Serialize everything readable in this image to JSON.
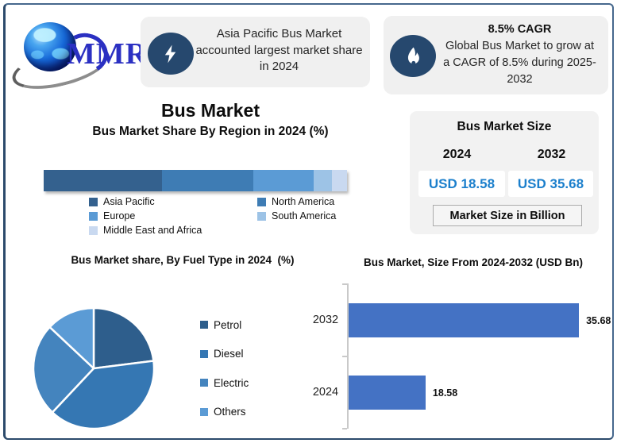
{
  "logo": {
    "text": "MMR"
  },
  "callouts": {
    "left": {
      "icon": "lightning-bolt",
      "lines": [
        "Asia Pacific Bus Market",
        "accounted largest market share",
        "in 2024"
      ]
    },
    "right": {
      "icon": "flame",
      "headline": "8.5% CAGR",
      "lines": [
        "Global Bus Market to grow at",
        "a CAGR of 8.5% during 2025-",
        "2032"
      ]
    }
  },
  "header": {
    "title": "Bus Market"
  },
  "market_size_panel": {
    "title": "Bus Market Size",
    "years": [
      "2024",
      "2032"
    ],
    "values": [
      "USD 18.58",
      "USD 35.68"
    ],
    "note": "Market Size in Billion",
    "value_color": "#1b7fcc"
  },
  "chart_data": [
    {
      "type": "bar",
      "variant": "stacked-horizontal",
      "title": "Bus Market Share By Region in 2024 (%)",
      "categories": [
        "Asia Pacific",
        "North America",
        "Europe",
        "South America",
        "Middle East and Africa"
      ],
      "values": [
        39,
        30,
        20,
        6,
        5
      ],
      "colors": [
        "#34618E",
        "#3E7CB4",
        "#5B9BD5",
        "#9DC3E6",
        "#C9D9F0"
      ],
      "unit": "%",
      "legend_position": "bottom",
      "note": "segment values estimated from bar proportions; no data labels shown"
    },
    {
      "type": "pie",
      "title": "Bus Market share, By Fuel Type in 2024  (%)",
      "categories": [
        "Petrol",
        "Diesel",
        "Electric",
        "Others"
      ],
      "values": [
        23,
        39,
        25,
        13
      ],
      "colors": [
        "#2E5E8C",
        "#3577B3",
        "#4484BE",
        "#5B9BD5"
      ],
      "legend_position": "right",
      "note": "slice values estimated from angles; no data labels shown"
    },
    {
      "type": "bar",
      "variant": "horizontal",
      "title": "Bus Market, Size From 2024-2032 (USD Bn)",
      "categories": [
        "2032",
        "2024"
      ],
      "values": [
        35.68,
        18.58
      ],
      "labels": [
        "35.68",
        "18.58"
      ],
      "color": "#4472C4",
      "xlim": [
        10,
        37
      ],
      "unit": "USD Bn",
      "grid": false
    }
  ]
}
